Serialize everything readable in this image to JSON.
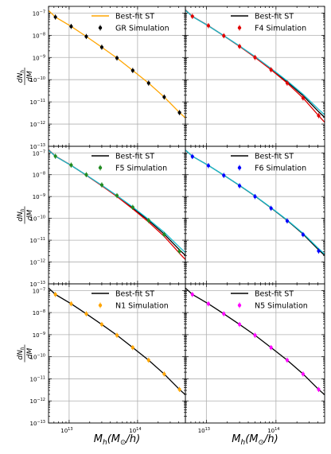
{
  "chart_data": [
    {
      "type": "scatter",
      "panel": "GR",
      "position": "top-left",
      "x_scale": "log",
      "y_scale": "log",
      "xlim": [
        5000000000000.0,
        500000000000000.0
      ],
      "ylim": [
        1e-13,
        2e-07
      ],
      "grid": true,
      "legend_placement": "top-right",
      "ylabel": "dN_h/dM",
      "series": [
        {
          "name": "Best-fit ST",
          "kind": "line",
          "color": "#ffa500",
          "x": [
            5000000000000.0,
            6300000000000.0,
            10700000000000.0,
            17800000000000.0,
            30000000000000.0,
            50000000000000.0,
            85000000000000.0,
            145000000000000.0,
            245000000000000.0,
            410000000000000.0,
            500000000000000.0
          ],
          "y": [
            1.3e-07,
            6.6e-08,
            2.5e-08,
            8.8e-09,
            2.9e-09,
            9.4e-10,
            2.6e-10,
            7e-11,
            1.65e-11,
            3.3e-12,
            1.9e-12
          ]
        },
        {
          "name": "GR Simulation",
          "kind": "points",
          "color": "#000000",
          "x": [
            6300000000000.0,
            10700000000000.0,
            17800000000000.0,
            30000000000000.0,
            50000000000000.0,
            85000000000000.0,
            145000000000000.0,
            245000000000000.0,
            410000000000000.0
          ],
          "y": [
            6.6e-08,
            2.5e-08,
            8.8e-09,
            2.9e-09,
            9.4e-10,
            2.6e-10,
            7e-11,
            1.65e-11,
            3.3e-12
          ]
        }
      ]
    },
    {
      "type": "scatter",
      "panel": "F4",
      "position": "top-right",
      "x_scale": "log",
      "y_scale": "log",
      "xlim": [
        5000000000000.0,
        500000000000000.0
      ],
      "ylim": [
        1e-13,
        2e-07
      ],
      "grid": true,
      "legend_placement": "top-right",
      "series": [
        {
          "name": "Best-fit ST",
          "kind": "line",
          "color": "#000000",
          "x": [
            5000000000000.0,
            6300000000000.0,
            10700000000000.0,
            17800000000000.0,
            30000000000000.0,
            50000000000000.0,
            85000000000000.0,
            145000000000000.0,
            245000000000000.0,
            410000000000000.0,
            500000000000000.0
          ],
          "y": [
            1.35e-07,
            7e-08,
            2.65e-08,
            9.5e-09,
            3.2e-09,
            1.05e-09,
            3e-10,
            8e-11,
            1.9e-11,
            3.6e-12,
            2e-12
          ]
        },
        {
          "name": "",
          "kind": "line",
          "color": "#e00000",
          "x": [
            5000000000000.0,
            6300000000000.0,
            10700000000000.0,
            17800000000000.0,
            30000000000000.0,
            50000000000000.0,
            85000000000000.0,
            145000000000000.0,
            245000000000000.0,
            410000000000000.0,
            500000000000000.0
          ],
          "y": [
            1.4e-07,
            7.1e-08,
            2.7e-08,
            9.5e-09,
            3.15e-09,
            1e-09,
            2.8e-10,
            7e-11,
            1.5e-11,
            2.4e-12,
            1.2e-12
          ]
        },
        {
          "name": "",
          "kind": "line",
          "color": "#17becf",
          "x": [
            5000000000000.0,
            6300000000000.0,
            10700000000000.0,
            17800000000000.0,
            30000000000000.0,
            50000000000000.0,
            85000000000000.0,
            145000000000000.0,
            245000000000000.0,
            410000000000000.0,
            500000000000000.0
          ],
          "y": [
            1.35e-07,
            7e-08,
            2.65e-08,
            9.6e-09,
            3.3e-09,
            1.1e-09,
            3.2e-10,
            8.8e-11,
            2.2e-11,
            4.6e-12,
            2.6e-12
          ]
        },
        {
          "name": "F4 Simulation",
          "kind": "points",
          "color": "#e00000",
          "x": [
            6300000000000.0,
            10700000000000.0,
            17800000000000.0,
            30000000000000.0,
            50000000000000.0,
            85000000000000.0,
            145000000000000.0,
            245000000000000.0,
            410000000000000.0
          ],
          "y": [
            7.1e-08,
            2.7e-08,
            9.5e-09,
            3.15e-09,
            1e-09,
            2.8e-10,
            7e-11,
            1.5e-11,
            2.4e-12
          ]
        }
      ]
    },
    {
      "type": "scatter",
      "panel": "F5",
      "position": "middle-left",
      "x_scale": "log",
      "y_scale": "log",
      "xlim": [
        5000000000000.0,
        500000000000000.0
      ],
      "ylim": [
        1e-13,
        2e-07
      ],
      "grid": true,
      "legend_placement": "top-right",
      "ylabel": "dN_h/dM",
      "series": [
        {
          "name": "Best-fit ST",
          "kind": "line",
          "color": "#000000",
          "x": [
            5000000000000.0,
            6300000000000.0,
            10700000000000.0,
            17800000000000.0,
            30000000000000.0,
            50000000000000.0,
            85000000000000.0,
            145000000000000.0,
            245000000000000.0,
            410000000000000.0,
            500000000000000.0
          ],
          "y": [
            1.35e-07,
            7e-08,
            2.65e-08,
            9.5e-09,
            3.2e-09,
            1.05e-09,
            3e-10,
            8e-11,
            1.9e-11,
            3.6e-12,
            2e-12
          ]
        },
        {
          "name": "",
          "kind": "line",
          "color": "#e00000",
          "x": [
            5000000000000.0,
            6300000000000.0,
            10700000000000.0,
            17800000000000.0,
            30000000000000.0,
            50000000000000.0,
            85000000000000.0,
            145000000000000.0,
            245000000000000.0,
            410000000000000.0,
            500000000000000.0
          ],
          "y": [
            1.4e-07,
            7.1e-08,
            2.7e-08,
            9.4e-09,
            3.1e-09,
            1e-09,
            2.7e-10,
            6.8e-11,
            1.5e-11,
            2.5e-12,
            1.3e-12
          ]
        },
        {
          "name": "",
          "kind": "line",
          "color": "#17becf",
          "x": [
            5000000000000.0,
            6300000000000.0,
            10700000000000.0,
            17800000000000.0,
            30000000000000.0,
            50000000000000.0,
            85000000000000.0,
            145000000000000.0,
            245000000000000.0,
            410000000000000.0,
            500000000000000.0
          ],
          "y": [
            1.35e-07,
            7e-08,
            2.65e-08,
            9.6e-09,
            3.3e-09,
            1.1e-09,
            3.3e-10,
            9e-11,
            2.3e-11,
            4.8e-12,
            2.7e-12
          ]
        },
        {
          "name": "F5 Simulation",
          "kind": "points",
          "color": "#228b22",
          "x": [
            6300000000000.0,
            10700000000000.0,
            17800000000000.0,
            30000000000000.0,
            50000000000000.0,
            85000000000000.0,
            145000000000000.0,
            245000000000000.0,
            410000000000000.0
          ],
          "y": [
            7e-08,
            2.75e-08,
            1e-08,
            3.4e-09,
            1.1e-09,
            3.2e-10,
            8e-11,
            1.8e-11,
            3.1e-12
          ]
        }
      ]
    },
    {
      "type": "scatter",
      "panel": "F6",
      "position": "middle-right",
      "x_scale": "log",
      "y_scale": "log",
      "xlim": [
        5000000000000.0,
        500000000000000.0
      ],
      "ylim": [
        1e-13,
        2e-07
      ],
      "grid": true,
      "legend_placement": "top-right",
      "series": [
        {
          "name": "Best-fit ST",
          "kind": "line",
          "color": "#000000",
          "x": [
            5000000000000.0,
            6300000000000.0,
            10700000000000.0,
            17800000000000.0,
            30000000000000.0,
            50000000000000.0,
            85000000000000.0,
            145000000000000.0,
            245000000000000.0,
            410000000000000.0,
            500000000000000.0
          ],
          "y": [
            1.35e-07,
            7e-08,
            2.65e-08,
            9.5e-09,
            3.2e-09,
            1.05e-09,
            3e-10,
            8e-11,
            1.9e-11,
            3.6e-12,
            2e-12
          ]
        },
        {
          "name": "",
          "kind": "line",
          "color": "#17becf",
          "x": [
            5000000000000.0,
            6300000000000.0,
            10700000000000.0,
            17800000000000.0,
            30000000000000.0,
            50000000000000.0,
            85000000000000.0,
            145000000000000.0,
            245000000000000.0,
            410000000000000.0,
            500000000000000.0
          ],
          "y": [
            1.35e-07,
            7e-08,
            2.65e-08,
            9.55e-09,
            3.25e-09,
            1.07e-09,
            3.1e-10,
            8.4e-11,
            2.05e-11,
            4.1e-12,
            2.3e-12
          ]
        },
        {
          "name": "F6 Simulation",
          "kind": "points",
          "color": "#0000ff",
          "x": [
            6300000000000.0,
            10700000000000.0,
            17800000000000.0,
            30000000000000.0,
            50000000000000.0,
            85000000000000.0,
            145000000000000.0,
            245000000000000.0,
            410000000000000.0
          ],
          "y": [
            6.8e-08,
            2.6e-08,
            9.3e-09,
            3.1e-09,
            1e-09,
            2.9e-10,
            7.6e-11,
            1.8e-11,
            3.2e-12
          ]
        }
      ]
    },
    {
      "type": "scatter",
      "panel": "N1",
      "position": "bottom-left",
      "x_scale": "log",
      "y_scale": "log",
      "xlim": [
        5000000000000.0,
        500000000000000.0
      ],
      "ylim": [
        1e-13,
        2e-07
      ],
      "grid": true,
      "legend_placement": "top-right",
      "ylabel": "dN_h/dM",
      "xlabel": "M_h(M_sun/h)",
      "series": [
        {
          "name": "Best-fit ST",
          "kind": "line",
          "color": "#000000",
          "x": [
            5000000000000.0,
            6300000000000.0,
            10700000000000.0,
            17800000000000.0,
            30000000000000.0,
            50000000000000.0,
            85000000000000.0,
            145000000000000.0,
            245000000000000.0,
            410000000000000.0,
            500000000000000.0
          ],
          "y": [
            1.3e-07,
            6.6e-08,
            2.5e-08,
            8.8e-09,
            2.9e-09,
            9.4e-10,
            2.6e-10,
            7e-11,
            1.65e-11,
            3.3e-12,
            1.9e-12
          ]
        },
        {
          "name": "N1 Simulation",
          "kind": "points",
          "color": "#ffa500",
          "x": [
            6300000000000.0,
            10700000000000.0,
            17800000000000.0,
            30000000000000.0,
            50000000000000.0,
            85000000000000.0,
            145000000000000.0,
            245000000000000.0,
            410000000000000.0
          ],
          "y": [
            6.6e-08,
            2.5e-08,
            8.8e-09,
            2.9e-09,
            9.4e-10,
            2.6e-10,
            7e-11,
            1.65e-11,
            3.3e-12
          ]
        }
      ]
    },
    {
      "type": "scatter",
      "panel": "N5",
      "position": "bottom-right",
      "x_scale": "log",
      "y_scale": "log",
      "xlim": [
        5000000000000.0,
        500000000000000.0
      ],
      "ylim": [
        1e-13,
        2e-07
      ],
      "grid": true,
      "legend_placement": "top-right",
      "xlabel": "M_h(M_sun/h)",
      "series": [
        {
          "name": "Best-fit ST",
          "kind": "line",
          "color": "#000000",
          "x": [
            5000000000000.0,
            6300000000000.0,
            10700000000000.0,
            17800000000000.0,
            30000000000000.0,
            50000000000000.0,
            85000000000000.0,
            145000000000000.0,
            245000000000000.0,
            410000000000000.0,
            500000000000000.0
          ],
          "y": [
            1.3e-07,
            6.6e-08,
            2.5e-08,
            8.8e-09,
            2.9e-09,
            9.4e-10,
            2.6e-10,
            7e-11,
            1.65e-11,
            3.3e-12,
            1.9e-12
          ]
        },
        {
          "name": "N5 Simulation",
          "kind": "points",
          "color": "#ff00ff",
          "x": [
            6300000000000.0,
            10700000000000.0,
            17800000000000.0,
            30000000000000.0,
            50000000000000.0,
            85000000000000.0,
            145000000000000.0,
            245000000000000.0,
            410000000000000.0
          ],
          "y": [
            6.6e-08,
            2.5e-08,
            8.8e-09,
            2.9e-09,
            9.4e-10,
            2.6e-10,
            7e-11,
            1.65e-11,
            3.3e-12
          ]
        }
      ]
    }
  ]
}
